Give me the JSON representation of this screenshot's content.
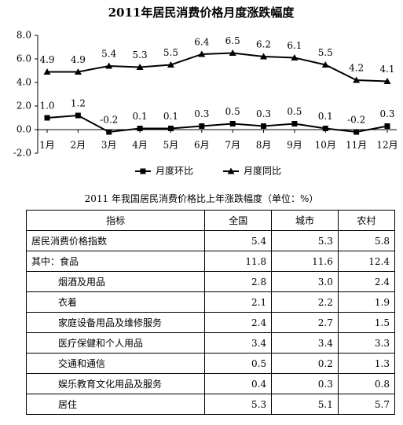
{
  "chart_data": {
    "type": "line",
    "title": "2011年居民消费价格月度涨跌幅度",
    "categories": [
      "1月",
      "2月",
      "3月",
      "4月",
      "5月",
      "6月",
      "7月",
      "8月",
      "9月",
      "10月",
      "11月",
      "12月"
    ],
    "series": [
      {
        "name": "月度环比",
        "color": "#000000",
        "marker": "square",
        "values": [
          1.0,
          1.2,
          -0.2,
          0.1,
          0.1,
          0.3,
          0.5,
          0.3,
          0.5,
          0.1,
          -0.2,
          0.3
        ],
        "value_labels": [
          "1.0",
          "1.2",
          "-0.2",
          "0.1",
          "0.1",
          "0.3",
          "0.5",
          "0.3",
          "0.5",
          "0.1",
          "-0.2",
          "0.3"
        ]
      },
      {
        "name": "月度同比",
        "color": "#000000",
        "marker": "triangle",
        "values": [
          4.9,
          4.9,
          5.4,
          5.3,
          5.5,
          6.4,
          6.5,
          6.2,
          6.1,
          5.5,
          4.2,
          4.1
        ],
        "value_labels": [
          "4.9",
          "4.9",
          "5.4",
          "5.3",
          "5.5",
          "6.4",
          "6.5",
          "6.2",
          "6.1",
          "5.5",
          "4.2",
          "4.1"
        ]
      }
    ],
    "ylim": [
      -2,
      8
    ],
    "yticks": [
      {
        "value": -2,
        "label": "-2.0"
      },
      {
        "value": 0,
        "label": "0.0"
      },
      {
        "value": 2,
        "label": "2.0"
      },
      {
        "value": 4,
        "label": "4.0"
      },
      {
        "value": 6,
        "label": "6.0"
      },
      {
        "value": 8,
        "label": "8.0"
      }
    ],
    "grid": false,
    "legend": "bottom"
  },
  "table": {
    "title": "2011 年我国居民消费价格比上年涨跌幅度（单位：%）",
    "header": [
      "指标",
      "全国",
      "城市",
      "农村"
    ],
    "rows": [
      [
        "居民消费价格指数",
        "5.4",
        "5.3",
        "5.8"
      ],
      [
        "其中：食品",
        "11.8",
        "11.6",
        "12.4"
      ],
      [
        "烟酒及用品",
        "2.8",
        "3.0",
        "2.4"
      ],
      [
        "衣着",
        "2.1",
        "2.2",
        "1.9"
      ],
      [
        "家庭设备用品及维修服务",
        "2.4",
        "2.7",
        "1.5"
      ],
      [
        "医疗保健和个人用品",
        "3.4",
        "3.4",
        "3.3"
      ],
      [
        "交通和通信",
        "0.5",
        "0.2",
        "1.3"
      ],
      [
        "娱乐教育文化用品及服务",
        "0.4",
        "0.3",
        "0.8"
      ],
      [
        "居住",
        "5.3",
        "5.1",
        "5.7"
      ]
    ]
  }
}
